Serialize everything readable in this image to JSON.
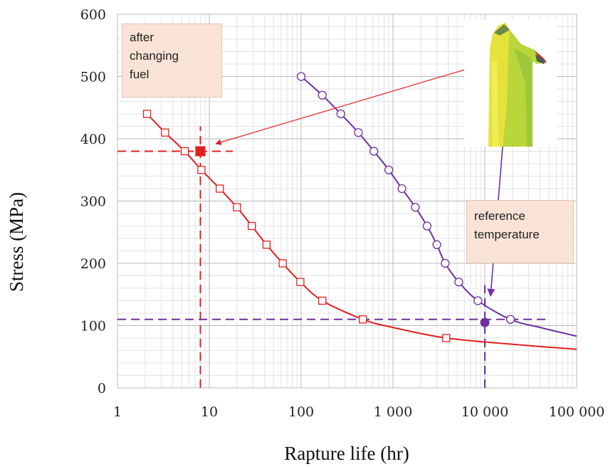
{
  "chart_data": {
    "type": "line",
    "xlabel": "Rapture life (hr)",
    "ylabel": "Stress (MPa)",
    "x_scale": "log",
    "xlim": [
      1,
      100000
    ],
    "ylim": [
      0,
      600
    ],
    "x_ticks": [
      {
        "value": 1,
        "label": "1"
      },
      {
        "value": 10,
        "label": "10"
      },
      {
        "value": 100,
        "label": "100"
      },
      {
        "value": 1000,
        "label": "1 000"
      },
      {
        "value": 10000,
        "label": "10 000"
      },
      {
        "value": 100000,
        "label": "100 000"
      }
    ],
    "y_ticks": [
      0,
      100,
      200,
      300,
      400,
      500,
      600
    ],
    "grid": true,
    "series": [
      {
        "color": "#e02020",
        "marker": "square",
        "x": [
          2.1,
          3.3,
          5.4,
          8.2,
          13,
          20,
          29,
          42,
          63,
          98,
          170,
          470,
          3800
        ],
        "y": [
          440,
          410,
          380,
          350,
          320,
          290,
          260,
          230,
          200,
          170,
          140,
          110,
          80
        ],
        "curve_x": [
          2.1,
          3.3,
          5.4,
          8.2,
          13,
          20,
          29,
          42,
          63,
          98,
          170,
          470,
          1000,
          3800,
          20000,
          100000
        ],
        "curve_y": [
          440,
          410,
          380,
          350,
          320,
          290,
          260,
          230,
          200,
          170,
          140,
          110,
          97,
          80,
          70,
          62
        ]
      },
      {
        "color": "#7030a0",
        "marker": "circle",
        "x": [
          100,
          170,
          270,
          420,
          620,
          900,
          1250,
          1750,
          2350,
          3000,
          3700,
          5200,
          8400,
          19000
        ],
        "y": [
          500,
          470,
          440,
          410,
          380,
          350,
          320,
          290,
          260,
          230,
          200,
          170,
          140,
          110
        ],
        "curve_x": [
          100,
          170,
          270,
          420,
          620,
          900,
          1250,
          1750,
          2350,
          3000,
          3700,
          5200,
          8400,
          19000,
          40000,
          100000
        ],
        "curve_y": [
          500,
          470,
          440,
          410,
          380,
          350,
          320,
          290,
          260,
          230,
          200,
          170,
          140,
          110,
          97,
          83
        ]
      }
    ],
    "highlight_points": [
      {
        "x": 8,
        "y": 380,
        "color": "#e02020",
        "marker": "filled-square"
      },
      {
        "x": 10000,
        "y": 105,
        "color": "#7030a0",
        "marker": "filled-circle"
      }
    ],
    "reference_lines": [
      {
        "orientation": "horizontal",
        "y": 380,
        "x_from": 1,
        "x_to": 18,
        "color": "#e02020"
      },
      {
        "orientation": "vertical",
        "x": 8,
        "y_from": 0,
        "y_to": 420,
        "color": "#e02020"
      },
      {
        "orientation": "horizontal",
        "y": 110,
        "x_from": 1,
        "x_to": 50000,
        "color": "#7030a0"
      },
      {
        "orientation": "vertical",
        "x": 10000,
        "y_from": 0,
        "y_to": 165,
        "color": "#7030a0"
      }
    ],
    "annotations": [
      {
        "lines": [
          "after",
          "changing",
          "fuel"
        ]
      },
      {
        "lines": [
          "reference",
          "temperature"
        ]
      }
    ]
  },
  "colors": {
    "red": "#e02020",
    "purple": "#7030a0",
    "note_bg": "#f9e3d6"
  },
  "image": {
    "name": "turbine-blade-icon"
  }
}
